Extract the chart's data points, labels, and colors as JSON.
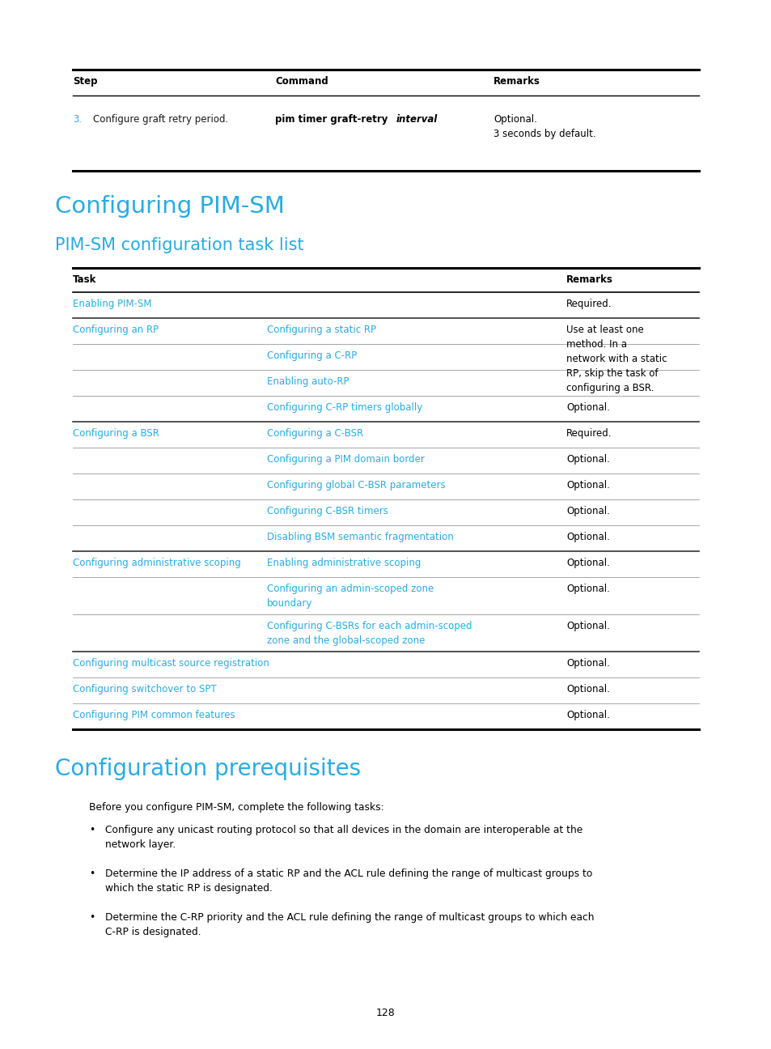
{
  "bg_color": "#ffffff",
  "cyan_color": "#29ABE2",
  "black_color": "#1a1a1a",
  "page_number": "128",
  "top_table_header": [
    "Step",
    "Command",
    "Remarks"
  ],
  "h1_title": "Configuring PIM-SM",
  "h2_title": "PIM-SM configuration task list",
  "h2_title2": "Configuration prerequisites",
  "prereq_intro": "Before you configure PIM-SM, complete the following tasks:",
  "prereq_bullets": [
    "Configure any unicast routing protocol so that all devices in the domain are interoperable at the\nnetwork layer.",
    "Determine the IP address of a static RP and the ACL rule defining the range of multicast groups to\nwhich the static RP is designated.",
    "Determine the C-RP priority and the ACL rule defining the range of multicast groups to which each\nC-RP is designated."
  ]
}
